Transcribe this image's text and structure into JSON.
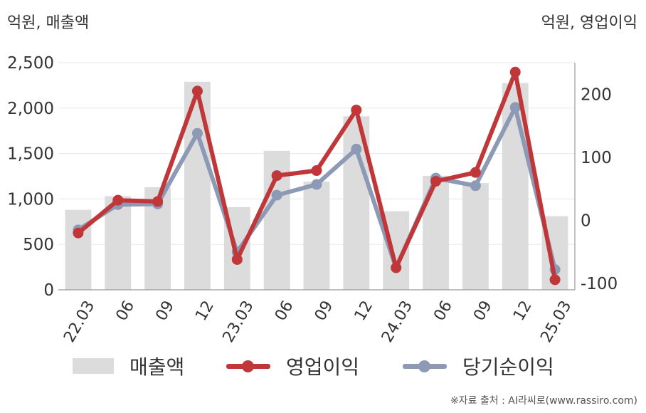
{
  "units": {
    "left": "억원, 매출액",
    "right": "억원, 영업이익"
  },
  "source": "※자료 출처 : AI라씨로(www.rassiro.com)",
  "colors": {
    "revenue": "#dcdcdc",
    "operating_profit": "#c0373a",
    "net_income": "#8d9ab5"
  },
  "chart_data": {
    "type": "bar",
    "categories": [
      "22.03",
      "06",
      "09",
      "12",
      "23.03",
      "06",
      "09",
      "12",
      "24.03",
      "06",
      "09",
      "12",
      "25.03"
    ],
    "left_axis": {
      "ylim": [
        0,
        2500
      ],
      "ticks": [
        "0",
        "500",
        "1,000",
        "1,500",
        "2,000",
        "2,500"
      ],
      "tick_values": [
        0,
        500,
        1000,
        1500,
        2000,
        2500
      ]
    },
    "right_axis": {
      "ylim": [
        -110,
        250
      ],
      "ticks": [
        "-100",
        "0",
        "100",
        "200"
      ],
      "tick_values": [
        -100,
        0,
        100,
        200
      ]
    },
    "series": [
      {
        "name": "매출액",
        "type": "bar",
        "axis": "left",
        "values": [
          880,
          1030,
          1130,
          2290,
          910,
          1530,
          1190,
          1910,
          865,
          1255,
          1175,
          2275,
          810
        ]
      },
      {
        "name": "영업이익",
        "type": "line",
        "axis": "right",
        "values": [
          -20,
          32,
          30,
          205,
          -62,
          71,
          79,
          175,
          -75,
          62,
          76,
          235,
          -94
        ]
      },
      {
        "name": "당기순이익",
        "type": "line",
        "axis": "right",
        "values": [
          -15,
          25,
          26,
          138,
          -50,
          40,
          57,
          113,
          -75,
          67,
          55,
          179,
          -78
        ]
      }
    ],
    "grid": true,
    "legend": "bottom"
  }
}
